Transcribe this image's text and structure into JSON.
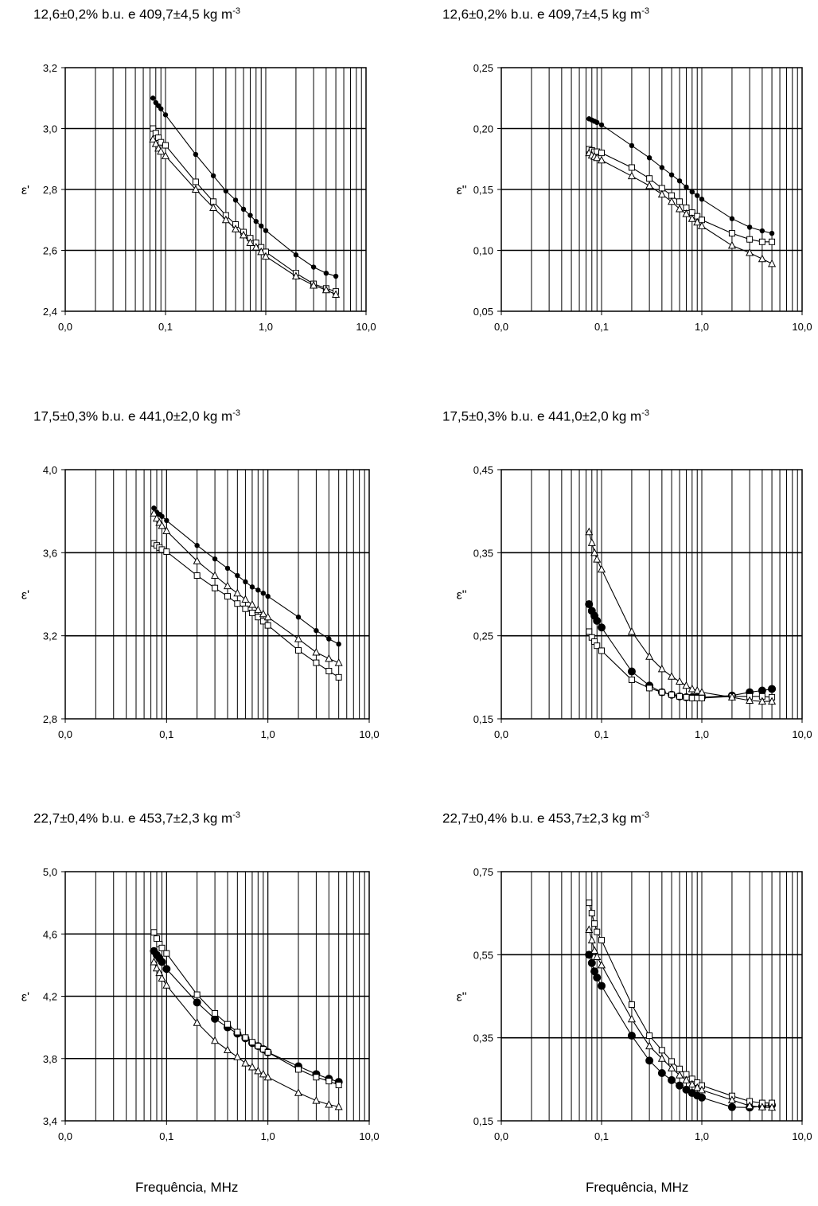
{
  "chart_data": [
    {
      "type": "scatter",
      "title": "12,6±0,2%  b.u. e 409,7±4,5 kg m",
      "title_exp": "-3",
      "ylabel": "ε'",
      "xlabel": "",
      "x_scale": "log",
      "xlim": [
        0.01,
        10
      ],
      "ylim": [
        2.4,
        3.2
      ],
      "x_ticks": [
        "0,0",
        "0,1",
        "1,0",
        "10,0"
      ],
      "y_ticks": [
        "2,4",
        "2,6",
        "2,8",
        "3,0",
        "3,2"
      ],
      "grid": true,
      "series": [
        {
          "marker": "filled-circle",
          "x": [
            0.075,
            0.08,
            0.085,
            0.09,
            0.1,
            0.2,
            0.3,
            0.4,
            0.5,
            0.6,
            0.7,
            0.8,
            0.9,
            1.0,
            2.0,
            3.0,
            4.0,
            5.0
          ],
          "y": [
            3.1,
            3.085,
            3.075,
            3.065,
            3.045,
            2.915,
            2.845,
            2.795,
            2.765,
            2.735,
            2.715,
            2.695,
            2.68,
            2.665,
            2.585,
            2.545,
            2.525,
            2.515
          ]
        },
        {
          "marker": "open-square",
          "x": [
            0.075,
            0.08,
            0.085,
            0.09,
            0.1,
            0.2,
            0.3,
            0.4,
            0.5,
            0.6,
            0.7,
            0.8,
            0.9,
            1.0,
            2.0,
            3.0,
            4.0,
            5.0
          ],
          "y": [
            3.0,
            2.985,
            2.97,
            2.955,
            2.945,
            2.825,
            2.76,
            2.715,
            2.685,
            2.66,
            2.64,
            2.625,
            2.61,
            2.595,
            2.525,
            2.49,
            2.475,
            2.465
          ]
        },
        {
          "marker": "open-triangle",
          "x": [
            0.075,
            0.08,
            0.085,
            0.09,
            0.1,
            0.2,
            0.3,
            0.4,
            0.5,
            0.6,
            0.7,
            0.8,
            0.9,
            1.0,
            2.0,
            3.0,
            4.0,
            5.0
          ],
          "y": [
            2.965,
            2.95,
            2.935,
            2.925,
            2.91,
            2.8,
            2.74,
            2.7,
            2.67,
            2.65,
            2.625,
            2.61,
            2.595,
            2.58,
            2.515,
            2.485,
            2.47,
            2.455
          ]
        }
      ]
    },
    {
      "type": "scatter",
      "title": "12,6±0,2%  b.u. e 409,7±4,5 kg m",
      "title_exp": "-3",
      "ylabel": "ε\"",
      "xlabel": "",
      "x_scale": "log",
      "xlim": [
        0.01,
        10
      ],
      "ylim": [
        0.05,
        0.25
      ],
      "x_ticks": [
        "0,0",
        "0,1",
        "1,0",
        "10,0"
      ],
      "y_ticks": [
        "0,05",
        "0,10",
        "0,15",
        "0,20",
        "0,25"
      ],
      "grid": true,
      "series": [
        {
          "marker": "filled-circle",
          "x": [
            0.075,
            0.08,
            0.085,
            0.09,
            0.1,
            0.2,
            0.3,
            0.4,
            0.5,
            0.6,
            0.7,
            0.8,
            0.9,
            1.0,
            2.0,
            3.0,
            4.0,
            5.0
          ],
          "y": [
            0.208,
            0.207,
            0.206,
            0.205,
            0.203,
            0.186,
            0.176,
            0.168,
            0.162,
            0.157,
            0.152,
            0.148,
            0.145,
            0.142,
            0.126,
            0.119,
            0.116,
            0.114
          ]
        },
        {
          "marker": "open-square",
          "x": [
            0.075,
            0.08,
            0.085,
            0.09,
            0.1,
            0.2,
            0.3,
            0.4,
            0.5,
            0.6,
            0.7,
            0.8,
            0.9,
            1.0,
            2.0,
            3.0,
            4.0,
            5.0
          ],
          "y": [
            0.183,
            0.182,
            0.181,
            0.181,
            0.18,
            0.168,
            0.159,
            0.151,
            0.145,
            0.14,
            0.135,
            0.131,
            0.128,
            0.125,
            0.114,
            0.109,
            0.107,
            0.107
          ]
        },
        {
          "marker": "open-triangle",
          "x": [
            0.075,
            0.08,
            0.085,
            0.09,
            0.1,
            0.2,
            0.3,
            0.4,
            0.5,
            0.6,
            0.7,
            0.8,
            0.9,
            1.0,
            2.0,
            3.0,
            4.0,
            5.0
          ],
          "y": [
            0.18,
            0.178,
            0.177,
            0.176,
            0.174,
            0.161,
            0.153,
            0.146,
            0.14,
            0.134,
            0.13,
            0.126,
            0.123,
            0.12,
            0.104,
            0.098,
            0.093,
            0.089
          ]
        }
      ]
    },
    {
      "type": "scatter",
      "title": "17,5±0,3%  b.u. e 441,0±2,0 kg m",
      "title_exp": "-3",
      "ylabel": "ε'",
      "xlabel": "",
      "x_scale": "log",
      "xlim": [
        0.01,
        10
      ],
      "ylim": [
        2.8,
        4.0
      ],
      "x_ticks": [
        "0,0",
        "0,1",
        "1,0",
        "10,0"
      ],
      "y_ticks": [
        "2,8",
        "3,2",
        "3,6",
        "4,0"
      ],
      "grid": true,
      "series": [
        {
          "marker": "filled-circle",
          "x": [
            0.075,
            0.08,
            0.085,
            0.09,
            0.1,
            0.2,
            0.3,
            0.4,
            0.5,
            0.6,
            0.7,
            0.8,
            0.9,
            1.0,
            2.0,
            3.0,
            4.0,
            5.0
          ],
          "y": [
            3.815,
            3.795,
            3.785,
            3.775,
            3.755,
            3.635,
            3.57,
            3.525,
            3.49,
            3.46,
            3.435,
            3.42,
            3.405,
            3.39,
            3.29,
            3.225,
            3.185,
            3.16
          ]
        },
        {
          "marker": "open-square",
          "x": [
            0.075,
            0.08,
            0.085,
            0.09,
            0.1,
            0.2,
            0.3,
            0.4,
            0.5,
            0.6,
            0.7,
            0.8,
            0.9,
            1.0,
            2.0,
            3.0,
            4.0,
            5.0
          ],
          "y": [
            3.645,
            3.635,
            3.625,
            3.615,
            3.605,
            3.49,
            3.43,
            3.39,
            3.355,
            3.33,
            3.31,
            3.29,
            3.27,
            3.25,
            3.13,
            3.07,
            3.03,
            3.0
          ]
        },
        {
          "marker": "open-triangle",
          "x": [
            0.075,
            0.08,
            0.085,
            0.09,
            0.1,
            0.2,
            0.3,
            0.4,
            0.5,
            0.6,
            0.7,
            0.8,
            0.9,
            1.0,
            2.0,
            3.0,
            4.0,
            5.0
          ],
          "y": [
            3.79,
            3.765,
            3.745,
            3.73,
            3.705,
            3.56,
            3.49,
            3.44,
            3.405,
            3.375,
            3.35,
            3.325,
            3.305,
            3.29,
            3.185,
            3.12,
            3.09,
            3.07
          ]
        }
      ]
    },
    {
      "type": "scatter",
      "title": "17,5±0,3%  b.u. e 441,0±2,0 kg m",
      "title_exp": "-3",
      "ylabel": "ε\"",
      "xlabel": "",
      "x_scale": "log",
      "xlim": [
        0.01,
        10
      ],
      "ylim": [
        0.15,
        0.45
      ],
      "x_ticks": [
        "0,0",
        "0,1",
        "1,0",
        "10,0"
      ],
      "y_ticks": [
        "0,15",
        "0,25",
        "0,35",
        "0,45"
      ],
      "grid": true,
      "series": [
        {
          "marker": "filled-circle-large",
          "x": [
            0.075,
            0.08,
            0.085,
            0.09,
            0.1,
            0.2,
            0.3,
            0.4,
            0.5,
            0.6,
            0.7,
            0.8,
            0.9,
            1.0,
            2.0,
            3.0,
            4.0,
            5.0
          ],
          "y": [
            0.288,
            0.28,
            0.274,
            0.268,
            0.26,
            0.207,
            0.19,
            0.182,
            0.179,
            0.177,
            0.176,
            0.176,
            0.176,
            0.176,
            0.178,
            0.182,
            0.184,
            0.186
          ]
        },
        {
          "marker": "open-square",
          "x": [
            0.075,
            0.08,
            0.085,
            0.09,
            0.1,
            0.2,
            0.3,
            0.4,
            0.5,
            0.6,
            0.7,
            0.8,
            0.9,
            1.0,
            2.0,
            3.0,
            4.0,
            5.0
          ],
          "y": [
            0.255,
            0.248,
            0.243,
            0.238,
            0.232,
            0.197,
            0.187,
            0.182,
            0.179,
            0.177,
            0.176,
            0.175,
            0.175,
            0.175,
            0.177,
            0.177,
            0.177,
            0.176
          ]
        },
        {
          "marker": "open-triangle",
          "x": [
            0.075,
            0.08,
            0.085,
            0.09,
            0.1,
            0.2,
            0.3,
            0.4,
            0.5,
            0.6,
            0.7,
            0.8,
            0.9,
            1.0,
            2.0,
            3.0,
            4.0,
            5.0
          ],
          "y": [
            0.375,
            0.362,
            0.35,
            0.342,
            0.33,
            0.255,
            0.225,
            0.21,
            0.201,
            0.195,
            0.19,
            0.186,
            0.184,
            0.182,
            0.176,
            0.172,
            0.171,
            0.171
          ]
        }
      ]
    },
    {
      "type": "scatter",
      "title": "22,7±0,4%  b.u. e 453,7±2,3 kg m",
      "title_exp": "-3",
      "ylabel": "ε'",
      "xlabel": "Frequência, MHz",
      "x_scale": "log",
      "xlim": [
        0.01,
        10
      ],
      "ylim": [
        3.4,
        5.0
      ],
      "x_ticks": [
        "0,0",
        "0,1",
        "1,0",
        "10,0"
      ],
      "y_ticks": [
        "3,4",
        "3,8",
        "4,2",
        "4,6",
        "5,0"
      ],
      "grid": true,
      "series": [
        {
          "marker": "filled-circle-large",
          "x": [
            0.075,
            0.08,
            0.085,
            0.09,
            0.1,
            0.2,
            0.3,
            0.4,
            0.5,
            0.6,
            0.7,
            0.8,
            0.9,
            1.0,
            2.0,
            3.0,
            4.0,
            5.0
          ],
          "y": [
            4.49,
            4.465,
            4.445,
            4.42,
            4.375,
            4.16,
            4.055,
            4.0,
            3.96,
            3.93,
            3.9,
            3.88,
            3.86,
            3.84,
            3.75,
            3.7,
            3.67,
            3.65
          ]
        },
        {
          "marker": "open-square",
          "x": [
            0.075,
            0.08,
            0.085,
            0.09,
            0.1,
            0.2,
            0.3,
            0.4,
            0.5,
            0.6,
            0.7,
            0.8,
            0.9,
            1.0,
            2.0,
            3.0,
            4.0,
            5.0
          ],
          "y": [
            4.61,
            4.57,
            4.535,
            4.51,
            4.475,
            4.21,
            4.09,
            4.02,
            3.97,
            3.935,
            3.905,
            3.88,
            3.86,
            3.84,
            3.73,
            3.68,
            3.655,
            3.63
          ]
        },
        {
          "marker": "open-triangle",
          "x": [
            0.075,
            0.08,
            0.085,
            0.09,
            0.1,
            0.2,
            0.3,
            0.4,
            0.5,
            0.6,
            0.7,
            0.8,
            0.9,
            1.0,
            2.0,
            3.0,
            4.0,
            5.0
          ],
          "y": [
            4.42,
            4.38,
            4.35,
            4.315,
            4.27,
            4.03,
            3.915,
            3.855,
            3.81,
            3.77,
            3.745,
            3.72,
            3.7,
            3.68,
            3.58,
            3.53,
            3.505,
            3.49
          ]
        }
      ]
    },
    {
      "type": "scatter",
      "title": "22,7±0,4%  b.u. e 453,7±2,3 kg m",
      "title_exp": "-3",
      "ylabel": "ε\"",
      "xlabel": "Frequência, MHz",
      "x_scale": "log",
      "xlim": [
        0.01,
        10
      ],
      "ylim": [
        0.15,
        0.75
      ],
      "x_ticks": [
        "0,0",
        "0,1",
        "1,0",
        "10,0"
      ],
      "y_ticks": [
        "0,15",
        "0,35",
        "0,55",
        "0,75"
      ],
      "grid": true,
      "series": [
        {
          "marker": "filled-circle-large",
          "x": [
            0.075,
            0.08,
            0.085,
            0.09,
            0.1,
            0.2,
            0.3,
            0.4,
            0.5,
            0.6,
            0.7,
            0.8,
            0.9,
            1.0,
            2.0,
            3.0,
            4.0,
            5.0
          ],
          "y": [
            0.55,
            0.53,
            0.51,
            0.495,
            0.475,
            0.355,
            0.295,
            0.265,
            0.248,
            0.235,
            0.225,
            0.217,
            0.211,
            0.206,
            0.183,
            0.182,
            0.185,
            0.188
          ]
        },
        {
          "marker": "open-square",
          "x": [
            0.075,
            0.08,
            0.085,
            0.09,
            0.1,
            0.2,
            0.3,
            0.4,
            0.5,
            0.6,
            0.7,
            0.8,
            0.9,
            1.0,
            2.0,
            3.0,
            4.0,
            5.0
          ],
          "y": [
            0.675,
            0.65,
            0.625,
            0.605,
            0.585,
            0.43,
            0.355,
            0.32,
            0.293,
            0.275,
            0.262,
            0.251,
            0.242,
            0.235,
            0.21,
            0.197,
            0.193,
            0.193
          ]
        },
        {
          "marker": "open-triangle",
          "x": [
            0.075,
            0.08,
            0.085,
            0.09,
            0.1,
            0.2,
            0.3,
            0.4,
            0.5,
            0.6,
            0.7,
            0.8,
            0.9,
            1.0,
            2.0,
            3.0,
            4.0,
            5.0
          ],
          "y": [
            0.61,
            0.585,
            0.56,
            0.545,
            0.525,
            0.395,
            0.33,
            0.3,
            0.277,
            0.26,
            0.248,
            0.238,
            0.23,
            0.224,
            0.2,
            0.186,
            0.183,
            0.182
          ]
        }
      ]
    }
  ]
}
